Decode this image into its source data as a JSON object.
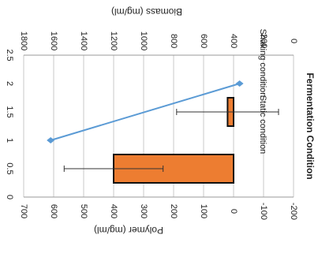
{
  "chart_data": {
    "type": "bar",
    "rotation_degrees": 90,
    "categories": [
      "Static condition",
      "Shaking condition"
    ],
    "series": [
      {
        "name": "Polymer",
        "type": "bar",
        "axis": "bottom",
        "values": [
          400,
          20
        ],
        "error": [
          165,
          170
        ],
        "color": "#ed7d31"
      },
      {
        "name": "Biomass",
        "type": "line",
        "axis": "top",
        "x": [
          1,
          2
        ],
        "values": [
          1620,
          360
        ],
        "color": "#5b9bd5"
      }
    ],
    "polymer_axis": {
      "label": "Polymer (mg/ml)",
      "ticks": [
        "700",
        "600",
        "500",
        "400",
        "300",
        "200",
        "100",
        "0",
        "-100",
        "-200"
      ],
      "range": [
        -200,
        700
      ]
    },
    "biomass_axis": {
      "label": "Biomass (mg/ml)",
      "ticks": [
        "1800",
        "1600",
        "1400",
        "1200",
        "1000",
        "800",
        "600",
        "400",
        "200",
        "0"
      ],
      "range": [
        0,
        1800
      ]
    },
    "position_axis": {
      "ticks": [
        "0",
        "0.5",
        "1",
        "1.5",
        "2",
        "2.5"
      ],
      "range": [
        0,
        2.5
      ]
    },
    "category_label": "Fermentation Condition",
    "grid": true
  }
}
